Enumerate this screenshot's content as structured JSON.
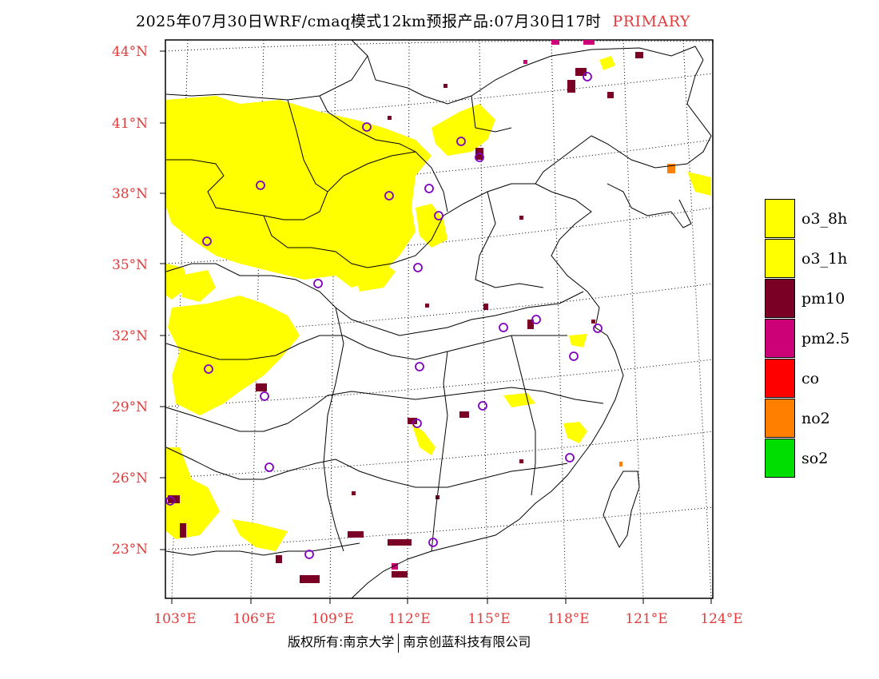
{
  "title": {
    "main": "2025年07月30日WRF/cmaq模式12km预报产品:07月30日17时",
    "tag": "PRIMARY"
  },
  "axes": {
    "lat_labels": [
      "44°N",
      "41°N",
      "38°N",
      "35°N",
      "32°N",
      "29°N",
      "26°N",
      "23°N"
    ],
    "lon_labels": [
      "103°E",
      "106°E",
      "109°E",
      "112°E",
      "115°E",
      "118°E",
      "121°E",
      "124°E"
    ],
    "label_color": "#e23b3b"
  },
  "legend": [
    {
      "label": "o3_8h",
      "color": "#ffff00"
    },
    {
      "label": "o3_1h",
      "color": "#ffff00"
    },
    {
      "label": "pm10",
      "color": "#7a0026"
    },
    {
      "label": "pm2.5",
      "color": "#cc0077"
    },
    {
      "label": "co",
      "color": "#ff0000"
    },
    {
      "label": "no2",
      "color": "#ff7f00"
    },
    {
      "label": "so2",
      "color": "#00dd00"
    }
  ],
  "footer": {
    "left": "版权所有:南京大学",
    "right": "南京创蓝科技有限公司"
  }
}
